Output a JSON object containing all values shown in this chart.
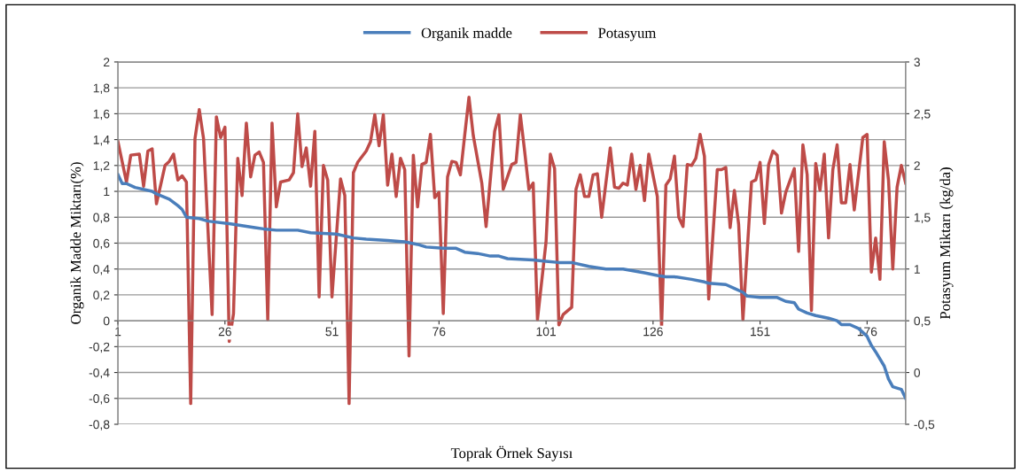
{
  "chart_data": {
    "type": "line",
    "xlabel": "Toprak Örnek Sayısı",
    "ylabel": "Organik Madde Miktarı(%)",
    "y2label": "Potasyum Miktarı (kg/da)",
    "xlim": [
      1,
      185
    ],
    "xticks": [
      1,
      26,
      51,
      76,
      101,
      126,
      151,
      176
    ],
    "ylim": [
      -0.8,
      2
    ],
    "yticks": [
      {
        "value": -0.8,
        "label": "-0,8"
      },
      {
        "value": -0.6,
        "label": "-0,6"
      },
      {
        "value": -0.4,
        "label": "-0,4"
      },
      {
        "value": -0.2,
        "label": "-0,2"
      },
      0,
      {
        "value": 0.2,
        "label": "0,2"
      },
      {
        "value": 0.4,
        "label": "0,4"
      },
      {
        "value": 0.6,
        "label": "0,6"
      },
      {
        "value": 0.8,
        "label": "0,8"
      },
      1,
      {
        "value": 1.2,
        "label": "1,2"
      },
      {
        "value": 1.4,
        "label": "1,4"
      },
      {
        "value": 1.6,
        "label": "1,6"
      },
      {
        "value": 1.8,
        "label": "1,8"
      },
      2
    ],
    "y2lim": [
      -0.5,
      3
    ],
    "y2ticks": [
      {
        "value": -0.5,
        "label": "-0,5"
      },
      0,
      {
        "value": 0.5,
        "label": "0,5"
      },
      1,
      {
        "value": 1.5,
        "label": "1,5"
      },
      2,
      {
        "value": 2.5,
        "label": "2,5"
      },
      3
    ],
    "grid": "y",
    "legend": "top",
    "marker": "none",
    "line_style": "solid",
    "series": [
      {
        "name": "Organik madde",
        "color": "#4a7ebb",
        "x": [
          1,
          2,
          3,
          5,
          9,
          10,
          13,
          15,
          16,
          17,
          20,
          22,
          27,
          29,
          33,
          35,
          38,
          43,
          46,
          52,
          56,
          59,
          64,
          68,
          71,
          73,
          77,
          80,
          82,
          85,
          88,
          90,
          92,
          98,
          101,
          104,
          107,
          111,
          115,
          119,
          124,
          127,
          129,
          131,
          135,
          138,
          139,
          143,
          145,
          147,
          148,
          151,
          155,
          157,
          159,
          160,
          162,
          164,
          167,
          169,
          170,
          172,
          174,
          176,
          177,
          178,
          180,
          181,
          182,
          184,
          185
        ],
        "values": [
          1.13,
          1.06,
          1.06,
          1.03,
          1.0,
          0.98,
          0.94,
          0.89,
          0.86,
          0.8,
          0.79,
          0.77,
          0.75,
          0.74,
          0.72,
          0.71,
          0.7,
          0.7,
          0.68,
          0.67,
          0.64,
          0.63,
          0.62,
          0.61,
          0.59,
          0.57,
          0.56,
          0.56,
          0.53,
          0.52,
          0.5,
          0.5,
          0.48,
          0.47,
          0.46,
          0.45,
          0.45,
          0.42,
          0.4,
          0.4,
          0.37,
          0.35,
          0.34,
          0.34,
          0.32,
          0.3,
          0.29,
          0.28,
          0.25,
          0.22,
          0.19,
          0.18,
          0.18,
          0.15,
          0.14,
          0.09,
          0.06,
          0.04,
          0.02,
          0.0,
          -0.03,
          -0.03,
          -0.06,
          -0.12,
          -0.19,
          -0.24,
          -0.35,
          -0.45,
          -0.51,
          -0.53,
          -0.6
        ]
      },
      {
        "name": "Potasyum",
        "color": "#be4b48",
        "axis": "y2",
        "x": [
          1,
          3,
          4,
          6,
          7,
          8,
          9,
          10,
          12,
          13,
          14,
          15,
          16,
          17,
          18,
          19,
          20,
          21,
          23,
          24,
          25,
          26,
          27,
          28,
          29,
          30,
          31,
          32,
          33,
          34,
          35,
          36,
          37,
          38,
          39,
          41,
          42,
          43,
          44,
          45,
          46,
          47,
          48,
          49,
          50,
          51,
          53,
          54,
          55,
          56,
          57,
          59,
          60,
          61,
          62,
          63,
          64,
          65,
          66,
          67,
          68,
          69,
          70,
          71,
          72,
          73,
          74,
          75,
          76,
          77,
          78,
          79,
          80,
          81,
          82,
          83,
          84,
          86,
          87,
          89,
          90,
          91,
          93,
          94,
          95,
          96,
          97,
          98,
          99,
          101,
          102,
          103,
          104,
          105,
          107,
          108,
          109,
          110,
          111,
          112,
          113,
          114,
          116,
          117,
          118,
          119,
          120,
          121,
          122,
          123,
          124,
          125,
          127,
          128,
          129,
          130,
          131,
          132,
          133,
          134,
          135,
          136,
          137,
          138,
          139,
          141,
          142,
          143,
          144,
          145,
          146,
          147,
          149,
          150,
          151,
          152,
          153,
          154,
          155,
          156,
          157,
          159,
          160,
          161,
          162,
          163,
          164,
          165,
          166,
          167,
          168,
          169,
          170,
          171,
          172,
          173,
          175,
          176,
          177,
          178,
          179,
          180,
          181,
          182,
          183,
          184,
          185
        ],
        "values": [
          2.23,
          1.84,
          2.1,
          2.11,
          1.8,
          2.14,
          2.16,
          1.63,
          2.0,
          2.04,
          2.11,
          1.86,
          1.9,
          1.84,
          -0.3,
          2.26,
          2.54,
          2.26,
          0.56,
          2.47,
          2.27,
          2.37,
          0.3,
          0.57,
          2.07,
          1.71,
          2.41,
          1.89,
          2.1,
          2.13,
          2.03,
          0.51,
          2.41,
          1.6,
          1.84,
          1.86,
          1.93,
          2.5,
          1.99,
          2.17,
          1.8,
          2.33,
          0.73,
          2.0,
          1.86,
          0.73,
          1.87,
          1.71,
          -0.3,
          1.93,
          2.03,
          2.14,
          2.23,
          2.49,
          2.19,
          2.49,
          1.81,
          2.11,
          1.7,
          2.07,
          1.96,
          0.16,
          2.1,
          1.6,
          2.01,
          2.03,
          2.3,
          1.69,
          1.74,
          0.57,
          1.89,
          2.04,
          2.03,
          1.91,
          2.29,
          2.66,
          2.29,
          1.83,
          1.41,
          2.33,
          2.49,
          1.77,
          2.01,
          2.03,
          2.49,
          2.14,
          1.77,
          1.83,
          0.51,
          1.26,
          2.11,
          1.97,
          0.46,
          0.56,
          0.63,
          1.77,
          1.91,
          1.7,
          1.7,
          1.91,
          1.92,
          1.5,
          2.17,
          1.79,
          1.78,
          1.83,
          1.81,
          2.11,
          1.77,
          2.0,
          1.66,
          2.11,
          1.7,
          0.44,
          1.81,
          1.87,
          2.09,
          1.5,
          1.41,
          2.01,
          2.0,
          2.07,
          2.3,
          2.09,
          0.71,
          1.96,
          1.96,
          1.98,
          1.4,
          1.76,
          1.43,
          0.51,
          1.84,
          1.86,
          2.03,
          1.44,
          2.01,
          2.14,
          2.1,
          1.54,
          1.74,
          1.97,
          1.17,
          2.2,
          1.91,
          0.6,
          2.02,
          1.76,
          2.11,
          1.3,
          1.96,
          2.2,
          1.64,
          1.64,
          2.01,
          1.57,
          2.27,
          2.3,
          0.97,
          1.3,
          0.9,
          2.23,
          1.86,
          1.0,
          1.79,
          2.0,
          1.83
        ]
      }
    ]
  }
}
